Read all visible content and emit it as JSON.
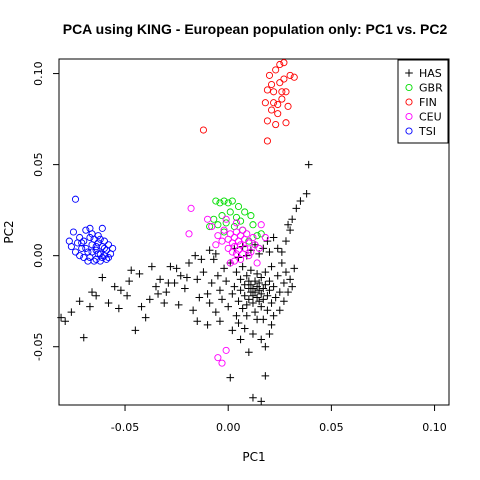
{
  "chart_data": {
    "type": "scatter",
    "title": "PCA using KING - European population only: PC1 vs. PC2",
    "xlabel": "PC1",
    "ylabel": "PC2",
    "xlim": [
      -0.082,
      0.107
    ],
    "ylim": [
      -0.082,
      0.108
    ],
    "xticks": [
      -0.05,
      0.0,
      0.05,
      0.1
    ],
    "yticks": [
      -0.05,
      0.0,
      0.05,
      0.1
    ],
    "xtick_labels": [
      "-0.05",
      "0.00",
      "0.05",
      "0.10"
    ],
    "ytick_labels": [
      "-0.05",
      "0.00",
      "0.05",
      "0.10"
    ],
    "grid": false,
    "legend_position": "top-right",
    "series": [
      {
        "name": "HAS",
        "marker": "plus",
        "color": "#000000",
        "points": [
          [
            -0.081,
            -0.034
          ],
          [
            -0.079,
            -0.036
          ],
          [
            -0.076,
            -0.031
          ],
          [
            -0.07,
            -0.045
          ],
          [
            -0.067,
            -0.028
          ],
          [
            -0.064,
            -0.022
          ],
          [
            -0.058,
            -0.026
          ],
          [
            -0.053,
            -0.029
          ],
          [
            -0.052,
            -0.019
          ],
          [
            -0.049,
            -0.022
          ],
          [
            -0.047,
            -0.008
          ],
          [
            -0.045,
            -0.041
          ],
          [
            -0.043,
            -0.01
          ],
          [
            -0.04,
            -0.034
          ],
          [
            -0.038,
            -0.024
          ],
          [
            -0.035,
            -0.017
          ],
          [
            -0.033,
            -0.013
          ],
          [
            -0.031,
            -0.026
          ],
          [
            -0.03,
            -0.02
          ],
          [
            -0.028,
            -0.006
          ],
          [
            -0.026,
            -0.015
          ],
          [
            -0.024,
            -0.027
          ],
          [
            -0.023,
            -0.011
          ],
          [
            -0.021,
            -0.018
          ],
          [
            -0.019,
            -0.004
          ],
          [
            -0.017,
            -0.03
          ],
          [
            -0.015,
            -0.013
          ],
          [
            -0.014,
            -0.023
          ],
          [
            -0.012,
            -0.009
          ],
          [
            -0.01,
            -0.021
          ],
          [
            -0.009,
            -0.026
          ],
          [
            -0.008,
            -0.015
          ],
          [
            -0.007,
            -0.002
          ],
          [
            -0.006,
            -0.031
          ],
          [
            -0.005,
            -0.011
          ],
          [
            -0.004,
            -0.019
          ],
          [
            -0.003,
            -0.024
          ],
          [
            -0.002,
            -0.007
          ],
          [
            -0.001,
            -0.014
          ],
          [
            0.0,
            -0.028
          ],
          [
            0.001,
            -0.004
          ],
          [
            0.002,
            -0.021
          ],
          [
            0.003,
            -0.017
          ],
          [
            0.004,
            -0.033
          ],
          [
            0.004,
            -0.009
          ],
          [
            0.005,
            -0.025
          ],
          [
            0.006,
            -0.013
          ],
          [
            0.006,
            -0.019
          ],
          [
            0.007,
            -0.029
          ],
          [
            0.007,
            -0.006
          ],
          [
            0.008,
            -0.016
          ],
          [
            0.008,
            -0.022
          ],
          [
            0.009,
            -0.011
          ],
          [
            0.009,
            -0.027
          ],
          [
            0.01,
            -0.018
          ],
          [
            0.01,
            -0.014
          ],
          [
            0.01,
            -0.024
          ],
          [
            0.011,
            -0.02
          ],
          [
            0.011,
            -0.016
          ],
          [
            0.011,
            -0.008
          ],
          [
            0.012,
            -0.022
          ],
          [
            0.012,
            -0.018
          ],
          [
            0.012,
            -0.026
          ],
          [
            0.013,
            -0.014
          ],
          [
            0.013,
            -0.02
          ],
          [
            0.013,
            -0.031
          ],
          [
            0.014,
            -0.017
          ],
          [
            0.014,
            -0.023
          ],
          [
            0.014,
            -0.01
          ],
          [
            0.015,
            -0.019
          ],
          [
            0.015,
            -0.025
          ],
          [
            0.015,
            -0.015
          ],
          [
            0.016,
            -0.021
          ],
          [
            0.016,
            -0.012
          ],
          [
            0.016,
            -0.028
          ],
          [
            0.017,
            -0.018
          ],
          [
            0.017,
            -0.024
          ],
          [
            0.018,
            -0.016
          ],
          [
            0.018,
            -0.009
          ],
          [
            0.019,
            -0.022
          ],
          [
            0.019,
            -0.03
          ],
          [
            0.02,
            -0.014
          ],
          [
            0.02,
            -0.019
          ],
          [
            0.021,
            -0.026
          ],
          [
            0.021,
            -0.006
          ],
          [
            0.022,
            -0.017
          ],
          [
            0.023,
            -0.023
          ],
          [
            0.024,
            -0.011
          ],
          [
            0.025,
            -0.02
          ],
          [
            0.026,
            -0.004
          ],
          [
            0.027,
            -0.015
          ],
          [
            0.028,
            -0.009
          ],
          [
            0.03,
            -0.013
          ],
          [
            0.032,
            -0.007
          ],
          [
            0.008,
            -0.04
          ],
          [
            0.012,
            -0.043
          ],
          [
            0.016,
            -0.046
          ],
          [
            0.005,
            -0.037
          ],
          [
            0.018,
            -0.05
          ],
          [
            0.01,
            -0.053
          ],
          [
            0.021,
            -0.038
          ],
          [
            0.014,
            -0.035
          ],
          [
            0.002,
            -0.041
          ],
          [
            0.025,
            -0.03
          ],
          [
            0.026,
            0.002
          ],
          [
            0.028,
            0.008
          ],
          [
            0.03,
            0.014
          ],
          [
            0.031,
            0.02
          ],
          [
            0.033,
            0.026
          ],
          [
            0.035,
            0.03
          ],
          [
            0.038,
            0.034
          ],
          [
            0.039,
            0.05
          ],
          [
            0.029,
            0.017
          ],
          [
            0.024,
            0.004
          ],
          [
            0.022,
            0.01
          ],
          [
            0.02,
            0.002
          ],
          [
            0.019,
            0.008
          ],
          [
            0.017,
            0.004
          ],
          [
            0.015,
            0.001
          ],
          [
            0.013,
            0.006
          ],
          [
            0.011,
            0.003
          ],
          [
            0.009,
            0.0
          ],
          [
            0.007,
            0.005
          ],
          [
            0.005,
            -0.001
          ],
          [
            0.003,
            0.004
          ],
          [
            -0.006,
            0.001
          ],
          [
            -0.009,
            0.003
          ],
          [
            -0.013,
            -0.002
          ],
          [
            -0.016,
            0.0
          ],
          [
            -0.02,
            -0.012
          ],
          [
            -0.025,
            -0.007
          ],
          [
            -0.029,
            -0.015
          ],
          [
            -0.034,
            -0.021
          ],
          [
            -0.037,
            -0.006
          ],
          [
            -0.042,
            -0.028
          ],
          [
            -0.048,
            -0.014
          ],
          [
            -0.055,
            -0.017
          ],
          [
            -0.061,
            -0.012
          ],
          [
            -0.066,
            -0.02
          ],
          [
            -0.072,
            -0.025
          ],
          [
            0.001,
            -0.067
          ],
          [
            0.012,
            -0.078
          ],
          [
            0.016,
            -0.08
          ],
          [
            0.018,
            -0.066
          ],
          [
            -0.01,
            -0.038
          ],
          [
            -0.015,
            -0.036
          ],
          [
            -0.004,
            -0.036
          ],
          [
            0.006,
            -0.046
          ],
          [
            0.009,
            -0.033
          ],
          [
            0.017,
            -0.035
          ],
          [
            0.022,
            -0.033
          ],
          [
            0.027,
            -0.025
          ],
          [
            0.029,
            -0.02
          ],
          [
            0.031,
            -0.017
          ],
          [
            0.02,
            -0.043
          ]
        ]
      },
      {
        "name": "GBR",
        "marker": "circle",
        "color": "#00dd00",
        "points": [
          [
            -0.006,
            0.03
          ],
          [
            -0.004,
            0.029
          ],
          [
            -0.002,
            0.03
          ],
          [
            0.0,
            0.029
          ],
          [
            0.002,
            0.03
          ],
          [
            0.005,
            0.027
          ],
          [
            -0.007,
            0.02
          ],
          [
            -0.003,
            0.022
          ],
          [
            0.001,
            0.024
          ],
          [
            0.004,
            0.021
          ],
          [
            0.008,
            0.024
          ],
          [
            0.011,
            0.022
          ],
          [
            -0.009,
            0.016
          ],
          [
            -0.005,
            0.017
          ],
          [
            -0.001,
            0.018
          ],
          [
            0.003,
            0.016
          ],
          [
            0.007,
            0.014
          ],
          [
            0.012,
            0.017
          ],
          [
            0.014,
            0.011
          ],
          [
            0.01,
            0.008
          ],
          [
            0.016,
            0.012
          ],
          [
            0.006,
            0.019
          ],
          [
            -0.002,
            0.013
          ]
        ]
      },
      {
        "name": "FIN",
        "marker": "circle",
        "color": "#ff0000",
        "points": [
          [
            -0.012,
            0.069
          ],
          [
            0.019,
            0.063
          ],
          [
            0.019,
            0.074
          ],
          [
            0.021,
            0.08
          ],
          [
            0.023,
            0.072
          ],
          [
            0.024,
            0.083
          ],
          [
            0.026,
            0.086
          ],
          [
            0.028,
            0.073
          ],
          [
            0.029,
            0.082
          ],
          [
            0.018,
            0.084
          ],
          [
            0.022,
            0.09
          ],
          [
            0.025,
            0.095
          ],
          [
            0.027,
            0.097
          ],
          [
            0.03,
            0.099
          ],
          [
            0.032,
            0.098
          ],
          [
            0.02,
            0.099
          ],
          [
            0.023,
            0.102
          ],
          [
            0.025,
            0.105
          ],
          [
            0.027,
            0.106
          ],
          [
            0.021,
            0.094
          ],
          [
            0.026,
            0.09
          ],
          [
            0.019,
            0.091
          ],
          [
            0.024,
            0.078
          ],
          [
            0.028,
            0.09
          ],
          [
            0.022,
            0.084
          ]
        ]
      },
      {
        "name": "CEU",
        "marker": "circle",
        "color": "#ff00ff",
        "points": [
          [
            -0.018,
            0.026
          ],
          [
            -0.019,
            0.012
          ],
          [
            -0.01,
            0.02
          ],
          [
            -0.008,
            0.016
          ],
          [
            -0.005,
            0.011
          ],
          [
            -0.003,
            0.008
          ],
          [
            -0.002,
            0.014
          ],
          [
            0.0,
            0.009
          ],
          [
            0.0,
            0.004
          ],
          [
            0.001,
            0.012
          ],
          [
            0.002,
            0.007
          ],
          [
            0.002,
            0.002
          ],
          [
            0.003,
            0.01
          ],
          [
            0.003,
            0.005
          ],
          [
            0.004,
            0.013
          ],
          [
            0.004,
            0.001
          ],
          [
            0.005,
            0.008
          ],
          [
            0.005,
            0.003
          ],
          [
            0.006,
            0.011
          ],
          [
            0.006,
            0.006
          ],
          [
            0.007,
            0.014
          ],
          [
            0.007,
            0.001
          ],
          [
            0.008,
            0.009
          ],
          [
            0.008,
            0.004
          ],
          [
            0.009,
            0.012
          ],
          [
            0.01,
            0.007
          ],
          [
            0.011,
            0.002
          ],
          [
            0.012,
            0.01
          ],
          [
            0.013,
            0.006
          ],
          [
            0.015,
            0.004
          ],
          [
            0.016,
            0.017
          ],
          [
            0.018,
            0.01
          ],
          [
            -0.001,
            0.02
          ],
          [
            0.004,
            0.018
          ],
          [
            -0.006,
            0.006
          ],
          [
            -0.001,
            -0.052
          ],
          [
            -0.003,
            -0.059
          ],
          [
            -0.005,
            -0.056
          ],
          [
            0.001,
            -0.004
          ],
          [
            0.006,
            -0.002
          ],
          [
            0.01,
            0.0
          ],
          [
            0.003,
            -0.003
          ],
          [
            0.014,
            -0.004
          ]
        ]
      },
      {
        "name": "TSI",
        "marker": "circle",
        "color": "#0000ff",
        "points": [
          [
            -0.074,
            0.031
          ],
          [
            -0.075,
            0.013
          ],
          [
            -0.072,
            0.01
          ],
          [
            -0.069,
            0.014
          ],
          [
            -0.067,
            0.015
          ],
          [
            -0.061,
            0.015
          ],
          [
            -0.077,
            0.008
          ],
          [
            -0.076,
            0.005
          ],
          [
            -0.073,
            0.007
          ],
          [
            -0.071,
            0.004
          ],
          [
            -0.07,
            0.008
          ],
          [
            -0.068,
            0.002
          ],
          [
            -0.066,
            0.006
          ],
          [
            -0.065,
            0.009
          ],
          [
            -0.064,
            0.003
          ],
          [
            -0.063,
            0.007
          ],
          [
            -0.062,
            0.001
          ],
          [
            -0.061,
            0.005
          ],
          [
            -0.06,
            0.008
          ],
          [
            -0.059,
            0.003
          ],
          [
            -0.058,
            0.006
          ],
          [
            -0.057,
            0.001
          ],
          [
            -0.074,
            0.002
          ],
          [
            -0.072,
            0.0
          ],
          [
            -0.07,
            -0.001
          ],
          [
            -0.069,
            0.004
          ],
          [
            -0.067,
            -0.001
          ],
          [
            -0.066,
            0.002
          ],
          [
            -0.064,
            -0.002
          ],
          [
            -0.063,
            0.001
          ],
          [
            -0.062,
            -0.003
          ],
          [
            -0.06,
            0.0
          ],
          [
            -0.059,
            -0.002
          ],
          [
            -0.068,
            -0.003
          ],
          [
            -0.065,
            -0.003
          ],
          [
            -0.061,
            -0.001
          ],
          [
            -0.058,
            -0.001
          ],
          [
            -0.071,
            0.007
          ],
          [
            -0.067,
            0.01
          ],
          [
            -0.063,
            0.011
          ],
          [
            -0.06,
            0.004
          ],
          [
            -0.056,
            0.004
          ],
          [
            -0.066,
            0.012
          ],
          [
            -0.064,
            0.005
          ],
          [
            -0.062,
            0.009
          ]
        ]
      }
    ]
  }
}
